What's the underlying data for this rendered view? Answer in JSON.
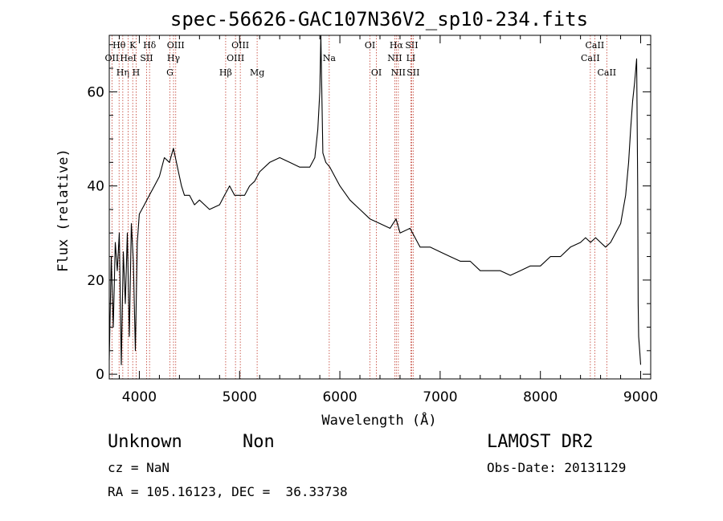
{
  "chart_data": {
    "type": "line",
    "title": "spec-56626-GAC107N36V2_sp10-234.fits",
    "xlabel": "Wavelength (Å)",
    "ylabel": "Flux (relative)",
    "xlim": [
      3700,
      9100
    ],
    "ylim": [
      -1,
      72
    ],
    "xticks": [
      4000,
      5000,
      6000,
      7000,
      8000,
      9000
    ],
    "yticks": [
      0,
      20,
      40,
      60
    ],
    "x_minor_step": 200,
    "y_minor_step": 5,
    "grid": false,
    "series": [
      {
        "x": [
          3700,
          3720,
          3740,
          3760,
          3780,
          3800,
          3820,
          3840,
          3860,
          3880,
          3900,
          3920,
          3940,
          3960,
          3980,
          4000,
          4050,
          4100,
          4150,
          4200,
          4250,
          4300,
          4340,
          4380,
          4420,
          4450,
          4500,
          4550,
          4600,
          4700,
          4800,
          4850,
          4900,
          4950,
          5000,
          5050,
          5100,
          5150,
          5200,
          5300,
          5400,
          5500,
          5600,
          5700,
          5750,
          5780,
          5800,
          5810,
          5830,
          5860,
          5900,
          5950,
          6000,
          6100,
          6200,
          6300,
          6400,
          6500,
          6560,
          6600,
          6700,
          6800,
          6900,
          7000,
          7100,
          7200,
          7300,
          7400,
          7500,
          7600,
          7700,
          7800,
          7900,
          8000,
          8100,
          8200,
          8300,
          8400,
          8450,
          8500,
          8550,
          8600,
          8650,
          8700,
          8750,
          8800,
          8850,
          8880,
          8900,
          8920,
          8940,
          8960,
          8970,
          8975,
          8980,
          8990,
          9000
        ],
        "y": [
          3,
          25,
          10,
          28,
          22,
          30,
          2,
          26,
          15,
          30,
          8,
          32,
          24,
          5,
          28,
          34,
          36,
          38,
          40,
          42,
          46,
          45,
          48,
          44,
          40,
          38,
          38,
          36,
          37,
          35,
          36,
          38,
          40,
          38,
          38,
          38,
          40,
          41,
          43,
          45,
          46,
          45,
          44,
          44,
          46,
          52,
          60,
          72,
          47,
          45,
          44,
          42,
          40,
          37,
          35,
          33,
          32,
          31,
          33,
          30,
          31,
          27,
          27,
          26,
          25,
          24,
          24,
          22,
          22,
          22,
          21,
          22,
          23,
          23,
          25,
          25,
          27,
          28,
          29,
          28,
          29,
          28,
          27,
          28,
          30,
          32,
          38,
          45,
          52,
          58,
          62,
          67,
          40,
          15,
          8,
          5,
          2
        ]
      }
    ],
    "spectral_lines": [
      {
        "name": "OII",
        "x": 3727,
        "row": 1
      },
      {
        "name": "Hθ",
        "x": 3798,
        "row": 0
      },
      {
        "name": "Hη",
        "x": 3835,
        "row": 2
      },
      {
        "name": "HeI",
        "x": 3889,
        "row": 1
      },
      {
        "name": "K",
        "x": 3934,
        "row": 0
      },
      {
        "name": "H",
        "x": 3968,
        "row": 2
      },
      {
        "name": "SII",
        "x": 4072,
        "row": 1
      },
      {
        "name": "Hδ",
        "x": 4102,
        "row": 0
      },
      {
        "name": "G",
        "x": 4305,
        "row": 2
      },
      {
        "name": "Hγ",
        "x": 4341,
        "row": 1
      },
      {
        "name": "OIII",
        "x": 4363,
        "row": 0
      },
      {
        "name": "Hβ",
        "x": 4861,
        "row": 2
      },
      {
        "name": "OIII",
        "x": 4959,
        "row": 1
      },
      {
        "name": "OIII",
        "x": 5007,
        "row": 0
      },
      {
        "name": "Mg",
        "x": 5175,
        "row": 2
      },
      {
        "name": "Na",
        "x": 5894,
        "row": 1
      },
      {
        "name": "OI",
        "x": 6300,
        "row": 0
      },
      {
        "name": "OI",
        "x": 6364,
        "row": 2
      },
      {
        "name": "NII",
        "x": 6548,
        "row": 1
      },
      {
        "name": "Hα",
        "x": 6563,
        "row": 0
      },
      {
        "name": "NII",
        "x": 6583,
        "row": 2
      },
      {
        "name": "LI",
        "x": 6708,
        "row": 1
      },
      {
        "name": "SII",
        "x": 6716,
        "row": 0
      },
      {
        "name": "SII",
        "x": 6731,
        "row": 2
      },
      {
        "name": "CaII",
        "x": 8498,
        "row": 1
      },
      {
        "name": "CaII",
        "x": 8542,
        "row": 0
      },
      {
        "name": "CaII",
        "x": 8662,
        "row": 2
      }
    ]
  },
  "info": {
    "class_label": "Unknown",
    "subclass_label": "Non",
    "cz": "cz = NaN",
    "coords": "RA = 105.16123, DEC =  36.33738",
    "survey": "LAMOST DR2",
    "obs_date": "Obs-Date: 20131129"
  }
}
